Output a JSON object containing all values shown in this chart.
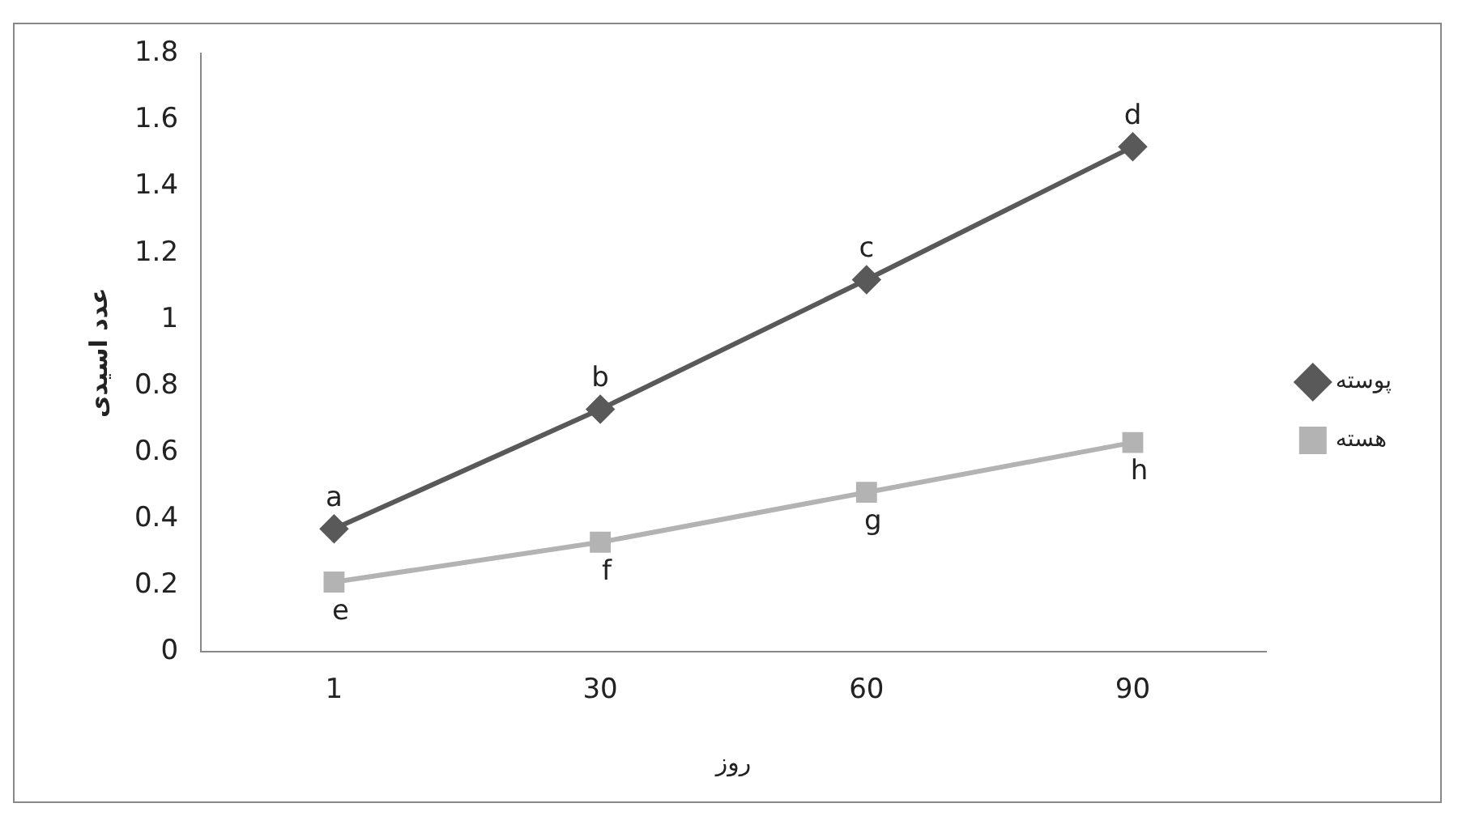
{
  "chart_data": {
    "type": "line",
    "xlabel": "روز",
    "ylabel": "عدد اسیدی",
    "categories": [
      "1",
      "30",
      "60",
      "90"
    ],
    "series": [
      {
        "name": "پوسته",
        "color": "#595959",
        "values": [
          0.37,
          0.73,
          1.12,
          1.52
        ],
        "marker": "diamond"
      },
      {
        "name": "هسته",
        "color": "#b3b3b3",
        "values": [
          0.21,
          0.33,
          0.48,
          0.63
        ],
        "marker": "square"
      }
    ],
    "ylim": [
      0,
      1.8
    ],
    "yticks": [
      0,
      0.2,
      0.4,
      0.6,
      0.8,
      1,
      1.2,
      1.4,
      1.6,
      1.8
    ],
    "grid": false,
    "legend": "right",
    "line_style": "solid",
    "annotations": [
      {
        "text": "a",
        "x": "1",
        "y": 0.37
      },
      {
        "text": "b",
        "x": "30",
        "y": 0.73
      },
      {
        "text": "c",
        "x": "60",
        "y": 1.12
      },
      {
        "text": "d",
        "x": "90",
        "y": 1.52
      },
      {
        "text": "e",
        "x": "1",
        "y": 0.21
      },
      {
        "text": "f",
        "x": "30",
        "y": 0.33
      },
      {
        "text": "g",
        "x": "60",
        "y": 0.48
      },
      {
        "text": "h",
        "x": "90",
        "y": 0.63
      }
    ]
  }
}
